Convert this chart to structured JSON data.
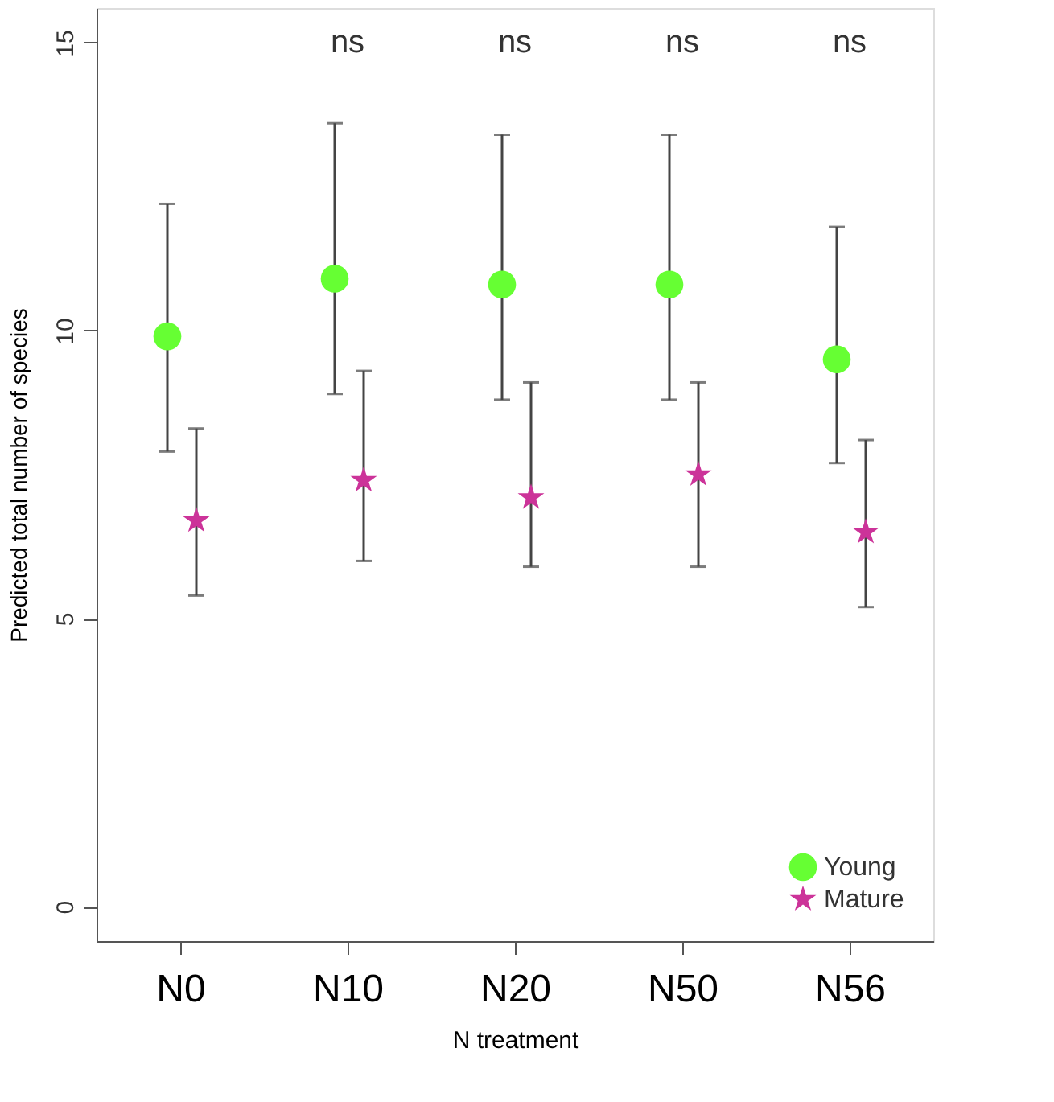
{
  "chart_data": {
    "type": "scatter",
    "xlabel": "N treatment",
    "ylabel": "Predicted total number of species",
    "categories": [
      "N0",
      "N10",
      "N20",
      "N50",
      "N56"
    ],
    "series": [
      {
        "name": "Young",
        "color": "#66ff33",
        "marker": "circle",
        "values": [
          9.9,
          10.9,
          10.8,
          10.8,
          9.5
        ],
        "errors": [
          [
            7.9,
            12.2
          ],
          [
            8.9,
            13.6
          ],
          [
            8.8,
            13.4
          ],
          [
            8.8,
            13.4
          ],
          [
            7.7,
            11.8
          ]
        ]
      },
      {
        "name": "Mature",
        "color": "#cc3399",
        "marker": "star",
        "values": [
          6.7,
          7.4,
          7.1,
          7.5,
          6.5
        ],
        "errors": [
          [
            5.4,
            8.3
          ],
          [
            6.0,
            9.3
          ],
          [
            5.9,
            9.1
          ],
          [
            5.9,
            9.1
          ],
          [
            5.2,
            8.1
          ]
        ]
      }
    ],
    "ylim": [
      -0.6,
      15.6
    ],
    "yticks": [
      0,
      5,
      10,
      15
    ],
    "annotations": [
      "ns",
      "ns",
      "ns",
      "ns"
    ],
    "legend": "bottom right",
    "grid": false
  }
}
